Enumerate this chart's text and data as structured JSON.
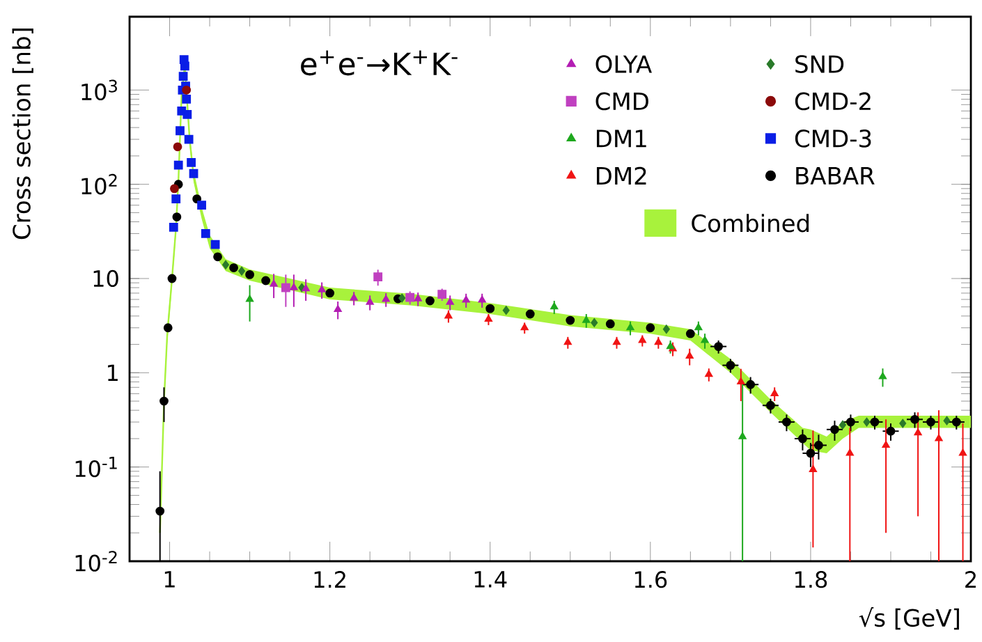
{
  "chart_data": {
    "type": "scatter",
    "title": "e$^{+}$e$^{-}$→K$^{+}$K$^{-}$",
    "xlabel": "√s  [GeV]",
    "ylabel": "Cross section  [nb]",
    "xlim": [
      0.95,
      2
    ],
    "ylim": [
      0.01,
      6000
    ],
    "log": "y",
    "xticks": [
      1,
      1.2,
      1.4,
      1.6,
      1.8,
      2
    ],
    "yticks": [
      {
        "value": 0.01,
        "label": "10$^{-2}$"
      },
      {
        "value": 0.1,
        "label": "10$^{-1}$"
      },
      1,
      10,
      {
        "value": 100,
        "label": "10$^{2}$"
      },
      {
        "value": 1000,
        "label": "10$^{3}$"
      }
    ],
    "legend": "top right",
    "series": [
      {
        "name": "Combined",
        "type": "line",
        "color": "#a8f23c",
        "x": [
          0.988,
          0.993,
          0.997,
          1.003,
          1.008,
          1.011,
          1.015,
          1.019,
          1.025,
          1.03,
          1.04,
          1.05,
          1.07,
          1.1,
          1.2,
          1.3,
          1.4,
          1.5,
          1.6,
          1.65,
          1.7,
          1.75,
          1.79,
          1.8,
          1.82,
          1.84,
          1.86,
          1.9,
          1.95,
          2.0
        ],
        "values": [
          0.02,
          0.5,
          2.5,
          10,
          35,
          110,
          900,
          1800,
          300,
          120,
          50,
          25,
          14,
          11,
          7,
          6,
          4.8,
          3.6,
          3.0,
          2.5,
          1.2,
          0.45,
          0.22,
          0.2,
          0.17,
          0.25,
          0.3,
          0.3,
          0.3,
          0.3
        ],
        "lower": [
          0.02,
          0.4,
          2,
          8.5,
          30,
          95,
          780,
          1550,
          260,
          105,
          43,
          21,
          12,
          9.5,
          6,
          5.2,
          4.2,
          3.1,
          2.6,
          2.2,
          1.0,
          0.38,
          0.18,
          0.15,
          0.14,
          0.2,
          0.26,
          0.26,
          0.26,
          0.26
        ],
        "upper": [
          0.02,
          0.6,
          3,
          11.5,
          40,
          125,
          1000,
          2100,
          350,
          140,
          57,
          29,
          16,
          12.5,
          8,
          6.9,
          5.5,
          4.1,
          3.4,
          2.9,
          1.4,
          0.52,
          0.26,
          0.25,
          0.21,
          0.3,
          0.35,
          0.35,
          0.35,
          0.35
        ]
      },
      {
        "name": "OLYA",
        "color": "#b31db3",
        "marker": "triangle",
        "x": [
          1.13,
          1.155,
          1.17,
          1.19,
          1.21,
          1.23,
          1.25,
          1.27,
          1.31,
          1.35,
          1.37,
          1.39
        ],
        "values": [
          8.7,
          8.0,
          7.8,
          7.6,
          4.7,
          6.2,
          5.6,
          6.0,
          6.1,
          5.6,
          5.9,
          5.9
        ],
        "errors": [
          2.5,
          3,
          2,
          1.5,
          1,
          1,
          1,
          1,
          1,
          1,
          1,
          1
        ]
      },
      {
        "name": "CMD",
        "color": "#c040c0",
        "marker": "square",
        "x": [
          1.145,
          1.26,
          1.3,
          1.34
        ],
        "values": [
          8,
          10.4,
          6.3,
          6.8
        ],
        "errors": [
          3,
          2,
          1,
          1
        ]
      },
      {
        "name": "DM1",
        "color": "#1ea81e",
        "marker": "triangle",
        "x": [
          1.1,
          1.48,
          1.52,
          1.575,
          1.625,
          1.66,
          1.668,
          1.715,
          1.89
        ],
        "values": [
          6.0,
          5.0,
          3.6,
          3.0,
          1.9,
          3.0,
          2.2,
          0.21,
          0.91
        ],
        "errors": [
          2.5,
          0.8,
          0.6,
          0.5,
          0.3,
          0.5,
          0.4,
          [
            0.01,
            0.81
          ],
          0.2
        ]
      },
      {
        "name": "DM2",
        "color": "#f01414",
        "marker": "triangle",
        "x": [
          1.348,
          1.398,
          1.443,
          1.497,
          1.558,
          1.59,
          1.61,
          1.628,
          1.649,
          1.673,
          1.713,
          1.755,
          1.803,
          1.849,
          1.894,
          1.934,
          1.96,
          1.99
        ],
        "values": [
          4.0,
          3.7,
          3.0,
          2.1,
          2.1,
          2.2,
          2.1,
          1.8,
          1.5,
          0.96,
          0.8,
          0.6,
          0.094,
          0.14,
          0.17,
          0.23,
          0.2,
          0.14
        ],
        "errors": [
          0.6,
          0.5,
          0.4,
          0.3,
          0.3,
          0.3,
          0.3,
          0.3,
          0.3,
          0.15,
          0.3,
          0.1,
          [
            0.014,
            0.244
          ],
          [
            0.01,
            0.26
          ],
          [
            0.02,
            0.32
          ],
          [
            0.03,
            0.38
          ],
          [
            0.01,
            0.4
          ],
          [
            0.01,
            0.29
          ]
        ]
      },
      {
        "name": "SND",
        "color": "#2a7a2a",
        "marker": "diamond",
        "x": [
          1.07,
          1.09,
          1.165,
          1.29,
          1.42,
          1.53,
          1.62,
          1.84,
          1.87,
          1.915,
          1.97
        ],
        "values": [
          14,
          12,
          8,
          6.2,
          4.6,
          3.4,
          2.9,
          0.28,
          0.3,
          0.29,
          0.31
        ]
      },
      {
        "name": "CMD-2",
        "color": "#8b0a0a",
        "marker": "circle",
        "x": [
          1.006,
          1.01,
          1.021
        ],
        "values": [
          90,
          250,
          1000
        ]
      },
      {
        "name": "CMD-3",
        "color": "#0a1ee6",
        "marker": "square",
        "x": [
          1.005,
          1.008,
          1.011,
          1.013,
          1.015,
          1.016,
          1.017,
          1.018,
          1.019,
          1.02,
          1.021,
          1.022,
          1.024,
          1.027,
          1.03,
          1.04,
          1.045,
          1.057
        ],
        "values": [
          35,
          70,
          160,
          370,
          600,
          1000,
          1400,
          2100,
          1800,
          1100,
          800,
          550,
          300,
          170,
          130,
          60,
          30,
          23
        ]
      },
      {
        "name": "BABAR",
        "color": "#000000",
        "marker": "circle",
        "x": [
          0.988,
          0.993,
          0.998,
          1.003,
          1.009,
          1.011,
          1.034,
          1.06,
          1.08,
          1.1,
          1.12,
          1.2,
          1.285,
          1.325,
          1.4,
          1.45,
          1.5,
          1.55,
          1.6,
          1.65,
          1.685,
          1.7,
          1.725,
          1.75,
          1.77,
          1.79,
          1.8,
          1.81,
          1.83,
          1.85,
          1.88,
          1.9,
          1.93,
          1.95,
          1.982
        ],
        "values": [
          0.034,
          0.5,
          3,
          10,
          45,
          100,
          70,
          17,
          13,
          11,
          9.5,
          7,
          6.1,
          5.8,
          4.8,
          4.2,
          3.6,
          3.3,
          3.0,
          2.6,
          1.9,
          1.2,
          0.75,
          0.45,
          0.3,
          0.2,
          0.14,
          0.17,
          0.25,
          0.3,
          0.3,
          0.24,
          0.32,
          0.3,
          0.3
        ],
        "errors": [
          [
            0.01,
            0.09
          ],
          [
            0.3,
            0.7
          ],
          null,
          null,
          null,
          null,
          null,
          null,
          null,
          null,
          null,
          null,
          null,
          null,
          null,
          null,
          null,
          null,
          null,
          null,
          0.3,
          0.2,
          0.15,
          0.08,
          0.06,
          0.05,
          0.04,
          0.05,
          0.06,
          0.06,
          0.05,
          0.05,
          0.06,
          0.05,
          0.05
        ],
        "xerrors": [
          null,
          null,
          null,
          null,
          null,
          null,
          null,
          null,
          null,
          null,
          null,
          null,
          null,
          null,
          null,
          null,
          null,
          null,
          null,
          null,
          0.01,
          0.01,
          0.01,
          0.01,
          0.01,
          0.01,
          0.01,
          0.01,
          0.01,
          0.01,
          0.01,
          0.01,
          0.01,
          0.01,
          0.01
        ]
      }
    ]
  }
}
